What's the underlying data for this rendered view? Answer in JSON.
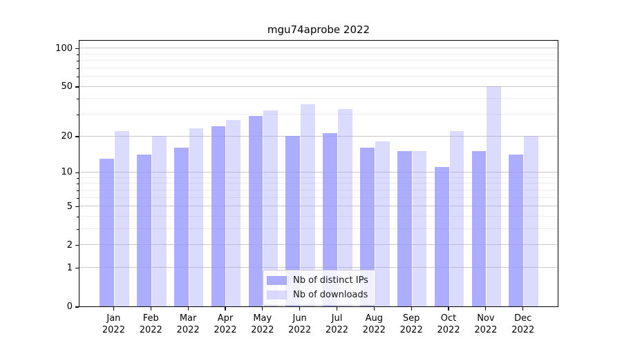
{
  "title": "mgu74aprobe 2022",
  "chart_data": {
    "type": "bar",
    "title": "mgu74aprobe 2022",
    "categories": [
      "Jan",
      "Feb",
      "Mar",
      "Apr",
      "May",
      "Jun",
      "Jul",
      "Aug",
      "Sep",
      "Oct",
      "Nov",
      "Dec"
    ],
    "year": "2022",
    "series": [
      {
        "name": "Nb of distinct IPs",
        "values": [
          13,
          14,
          16,
          24,
          29,
          20,
          21,
          16,
          15,
          11,
          15,
          14
        ],
        "color": "rgba(153,153,255,0.8)"
      },
      {
        "name": "Nb of downloads",
        "values": [
          22,
          20,
          23,
          27,
          32,
          36,
          33,
          18,
          15,
          22,
          50,
          20
        ],
        "color": "rgba(153,153,255,0.35)"
      }
    ],
    "xlabel": "",
    "ylabel": "",
    "ylim": [
      0,
      115
    ],
    "y_scale": "log1p",
    "y_major_ticks": [
      0,
      1,
      2,
      5,
      10,
      20,
      50,
      100
    ],
    "y_minor_ticks": [
      3,
      4,
      6,
      7,
      8,
      9,
      30,
      40,
      60,
      70,
      80,
      90
    ],
    "y_tick_labels": [
      "0",
      "1",
      "2",
      "5",
      "10",
      "20",
      "50",
      "100"
    ],
    "grid": "major-and-minor-horizontal",
    "legend_position": "lower-center"
  },
  "legend": {
    "items": [
      {
        "label": "Nb of distinct IPs"
      },
      {
        "label": "Nb of downloads"
      }
    ]
  },
  "colors": {
    "bar_distinct_ips": "rgba(153,153,255,0.8)",
    "bar_downloads": "rgba(153,153,255,0.35)",
    "grid_major": "#c9c9c9",
    "grid_minor": "#ececec",
    "axis": "#000000",
    "legend_border": "#cccccc"
  }
}
